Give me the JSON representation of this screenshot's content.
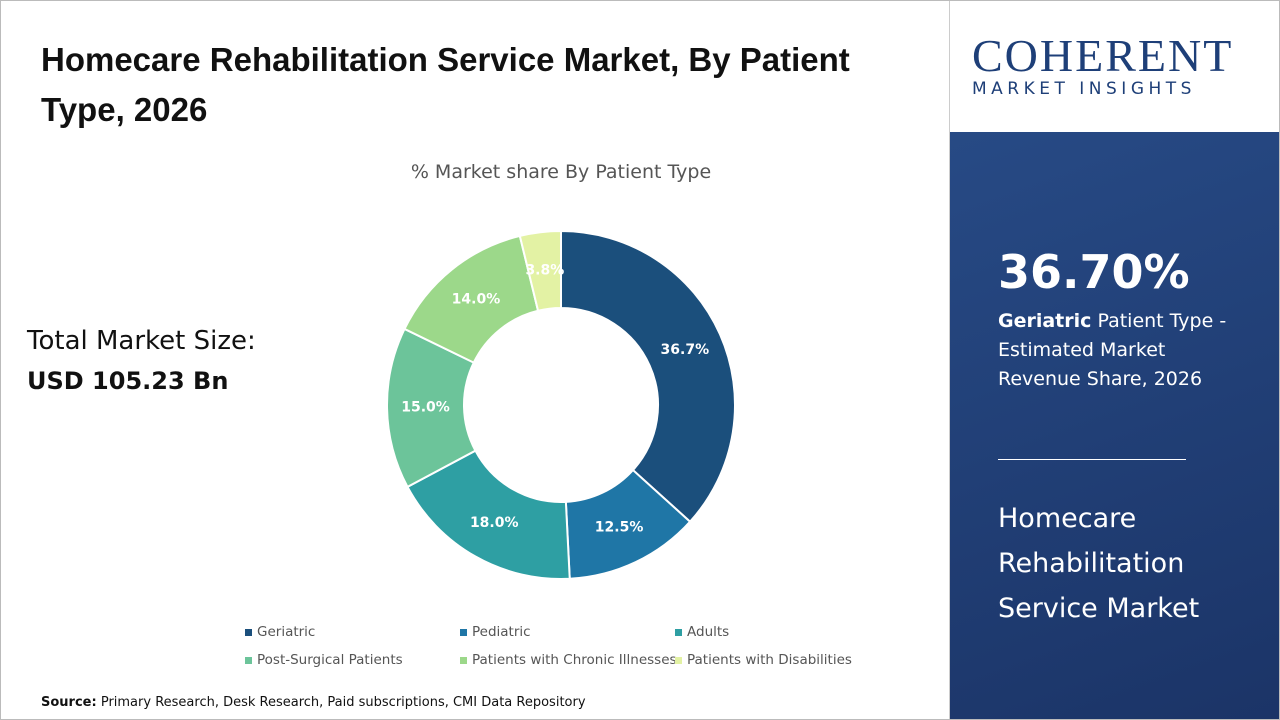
{
  "header": {
    "title": "Homecare Rehabilitation Service Market, By Patient Type, 2026"
  },
  "total": {
    "label": "Total Market Size:",
    "value": "USD 105.23 Bn"
  },
  "source": {
    "label": "Source:",
    "text": "Primary Research, Desk Research, Paid subscriptions, CMI Data Repository"
  },
  "logo": {
    "name": "COHERENT",
    "tagline": "MARKET INSIGHTS"
  },
  "sidebar": {
    "highlight": "36.70%",
    "segment": "Geriatric",
    "description": "Patient Type - Estimated Market Revenue Share, 2026",
    "market": "Homecare Rehabilitation Service Market"
  },
  "chart_data": {
    "type": "donut",
    "title": "% Market share By Patient Type",
    "categories": [
      "Geriatric",
      "Pediatric",
      "Adults",
      "Post-Surgical Patients",
      "Patients with Chronic Illnesses",
      "Patients with Disabilities"
    ],
    "values": [
      36.7,
      12.5,
      18.0,
      15.0,
      14.0,
      3.8
    ],
    "value_labels": [
      "36.7%",
      "12.5%",
      "18.0%",
      "15.0%",
      "14.0%",
      "3.8%"
    ],
    "colors": [
      "#1b4f7c",
      "#1f76a6",
      "#2e9fa3",
      "#6cc49a",
      "#9cd88a",
      "#e3f2a4"
    ]
  }
}
